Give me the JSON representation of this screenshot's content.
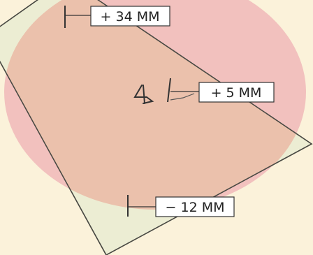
{
  "colors": {
    "background": "#fbf2da",
    "sheet_fill": "#ecedd3",
    "sheet_stroke": "#4a4a44",
    "circle_fill": "#f0b8b8",
    "overlap_fill": "#ebc1ac",
    "ink": "#333333",
    "box_fill": "#ffffff"
  },
  "marks": {
    "top": {
      "label": "+ 34 MM",
      "value_mm": 34
    },
    "center": {
      "label": "+ 5 MM",
      "value_mm": 5
    },
    "bottom": {
      "label": "− 12 MM",
      "value_mm": -12
    }
  }
}
